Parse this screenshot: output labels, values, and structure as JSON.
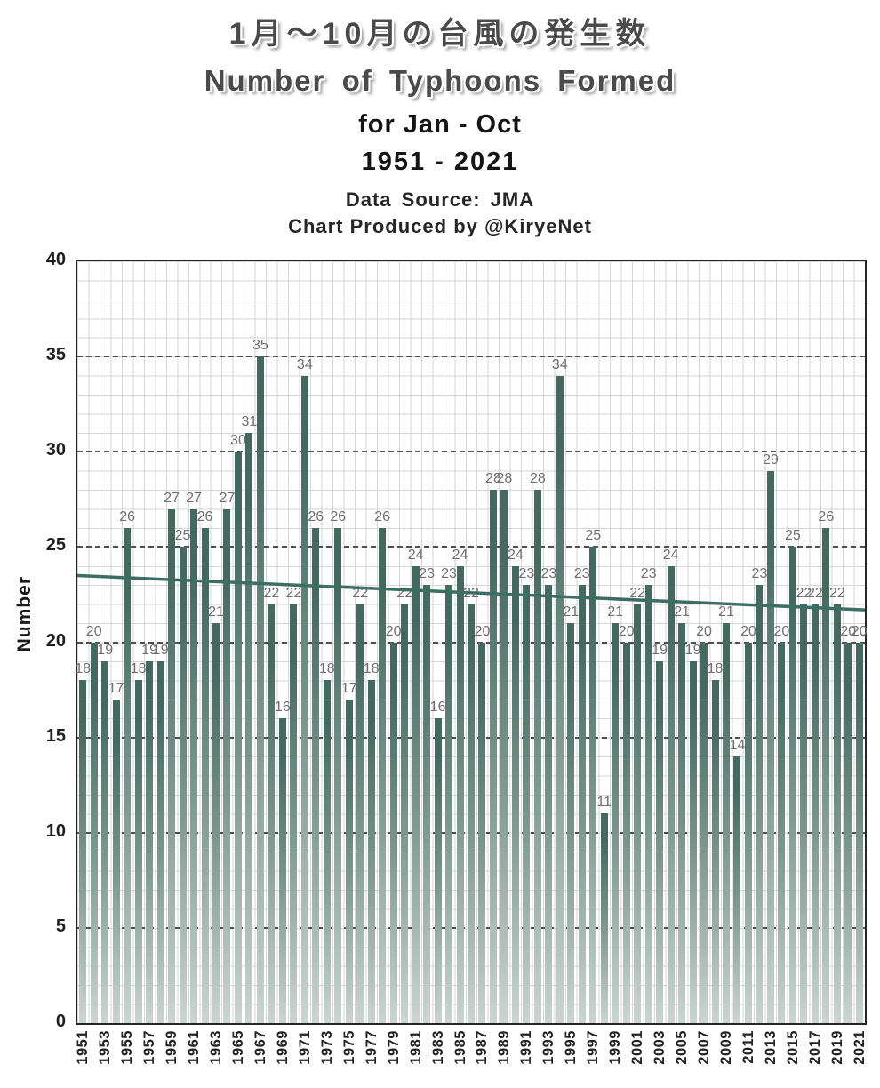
{
  "header": {
    "title_jp": "1月〜10月の台風の発生数",
    "title_en": "Number of Typhoons Formed",
    "subtitle_period": "for Jan - Oct",
    "subtitle_years": "1951 - 2021",
    "data_source": "Data Source: JMA",
    "credit": "Chart Produced by @KiryeNet"
  },
  "chart_data": {
    "type": "bar",
    "title": "Number of Typhoons Formed for Jan - Oct, 1951 - 2021",
    "xlabel": "",
    "ylabel": "Number",
    "ylim": [
      0,
      40
    ],
    "y_ticks": [
      0,
      5,
      10,
      15,
      20,
      25,
      30,
      35,
      40
    ],
    "grid": {
      "minor_step_y": 1,
      "minor_step_x": 1,
      "major_step_y": 5,
      "major_style": "dashed"
    },
    "legend": "none",
    "categories": [
      "1951",
      "1952",
      "1953",
      "1954",
      "1955",
      "1956",
      "1957",
      "1958",
      "1959",
      "1960",
      "1961",
      "1962",
      "1963",
      "1964",
      "1965",
      "1966",
      "1967",
      "1968",
      "1969",
      "1970",
      "1971",
      "1972",
      "1973",
      "1974",
      "1975",
      "1976",
      "1977",
      "1978",
      "1979",
      "1980",
      "1981",
      "1982",
      "1983",
      "1984",
      "1985",
      "1986",
      "1987",
      "1988",
      "1989",
      "1990",
      "1991",
      "1992",
      "1993",
      "1994",
      "1995",
      "1996",
      "1997",
      "1998",
      "1999",
      "2000",
      "2001",
      "2002",
      "2003",
      "2004",
      "2005",
      "2006",
      "2007",
      "2008",
      "2009",
      "2010",
      "2011",
      "2012",
      "2013",
      "2014",
      "2015",
      "2016",
      "2017",
      "2018",
      "2019",
      "2020",
      "2021"
    ],
    "values": [
      18,
      20,
      19,
      17,
      26,
      18,
      19,
      19,
      27,
      25,
      27,
      26,
      21,
      27,
      30,
      31,
      35,
      22,
      16,
      22,
      34,
      26,
      18,
      26,
      17,
      22,
      18,
      26,
      20,
      22,
      24,
      23,
      16,
      23,
      24,
      22,
      20,
      28,
      28,
      24,
      23,
      28,
      23,
      34,
      21,
      23,
      25,
      11,
      21,
      20,
      22,
      23,
      19,
      24,
      21,
      19,
      20,
      18,
      21,
      14,
      20,
      23,
      29,
      20,
      25,
      22,
      22,
      26,
      22,
      20,
      20
    ],
    "x_tick_labels": [
      "1951",
      "1953",
      "1955",
      "1957",
      "1959",
      "1961",
      "1963",
      "1965",
      "1967",
      "1969",
      "1971",
      "1973",
      "1975",
      "1977",
      "1979",
      "1981",
      "1983",
      "1985",
      "1987",
      "1989",
      "1991",
      "1993",
      "1995",
      "1997",
      "1999",
      "2001",
      "2003",
      "2005",
      "2007",
      "2009",
      "2011",
      "2013",
      "2015",
      "2017",
      "2019",
      "2021"
    ],
    "trendline": {
      "type": "linear",
      "start": 23.5,
      "end": 21.7
    },
    "colors": {
      "bar_top": "#44695f",
      "bar_mid": "#7d988f",
      "bar_bottom": "#cbd4d0",
      "trend": "#3c6e63",
      "value_label": "#6f6f6f",
      "grid_minor": "#d6d6d6",
      "grid_major": "#4f4f4f",
      "frame": "#262626",
      "axis_text": "#1f1f1f"
    }
  }
}
